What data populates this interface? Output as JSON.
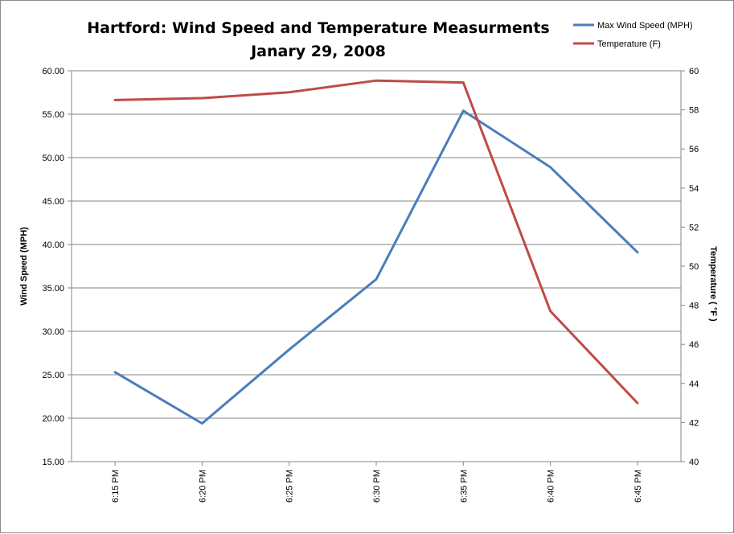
{
  "chart_data": {
    "type": "line",
    "title": "Hartford: Wind Speed and Temperature Measurments",
    "subtitle": "Janary 29, 2008",
    "categories": [
      "6:15 PM",
      "6:20 PM",
      "6:25 PM",
      "6:30 PM",
      "6:35 PM",
      "6:40 PM",
      "6:45 PM"
    ],
    "series": [
      {
        "name": "Max Wind Speed (MPH)",
        "axis": "left",
        "color": "#4a7ebb",
        "values": [
          25.3,
          19.4,
          27.9,
          36.0,
          55.4,
          48.9,
          39.1
        ]
      },
      {
        "name": "Temperature (F)",
        "axis": "right",
        "color": "#be4b48",
        "values": [
          58.5,
          58.6,
          58.9,
          59.5,
          59.4,
          47.7,
          43.0
        ]
      }
    ],
    "y_left": {
      "label": "Wind Speed (MPH)",
      "min": 15,
      "max": 60,
      "step": 5,
      "ticks": [
        "15.00",
        "20.00",
        "25.00",
        "30.00",
        "35.00",
        "40.00",
        "45.00",
        "50.00",
        "55.00",
        "60.00"
      ]
    },
    "y_right": {
      "label": "Temperature ( °F )",
      "min": 40,
      "max": 60,
      "step": 2,
      "ticks": [
        "40",
        "42",
        "44",
        "46",
        "48",
        "50",
        "52",
        "54",
        "56",
        "58",
        "60"
      ]
    },
    "grid": true,
    "legend": "top-right"
  }
}
